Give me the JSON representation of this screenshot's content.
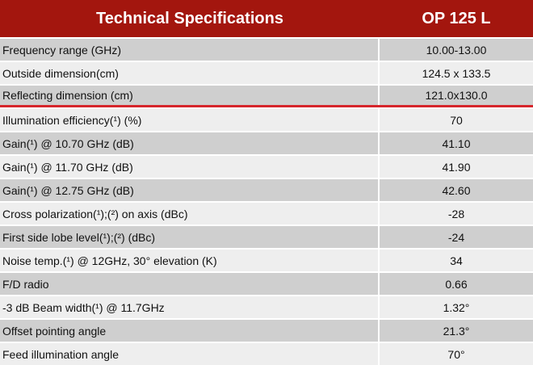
{
  "header": {
    "title": "Technical Specifications",
    "model": "OP 125 L"
  },
  "table": {
    "rows": [
      [
        "Frequency range (GHz)",
        "10.00-13.00"
      ],
      [
        "Outside dimension(cm)",
        "124.5 x 133.5"
      ],
      [
        "Reflecting dimension (cm)",
        "121.0x130.0"
      ],
      [
        "Illumination efficiency(¹) (%)",
        "70"
      ],
      [
        "Gain(¹) @  10.70 GHz (dB)",
        "41.10"
      ],
      [
        "Gain(¹) @  11.70 GHz (dB)",
        "41.90"
      ],
      [
        "Gain(¹) @  12.75 GHz (dB)",
        "42.60"
      ],
      [
        "Cross polarization(¹);(²) on axis (dBc)",
        "-28"
      ],
      [
        "First side lobe level(¹);(²) (dBc)",
        "-24"
      ],
      [
        "Noise temp.(¹) @ 12GHz, 30°  elevation (K)",
        "34"
      ],
      [
        "F/D radio",
        "0.66"
      ],
      [
        "-3 dB Beam width(¹) @ 11.7GHz",
        "1.32°"
      ],
      [
        "Offset pointing angle",
        "21.3°"
      ],
      [
        "Feed illumination angle",
        "70°"
      ]
    ]
  }
}
